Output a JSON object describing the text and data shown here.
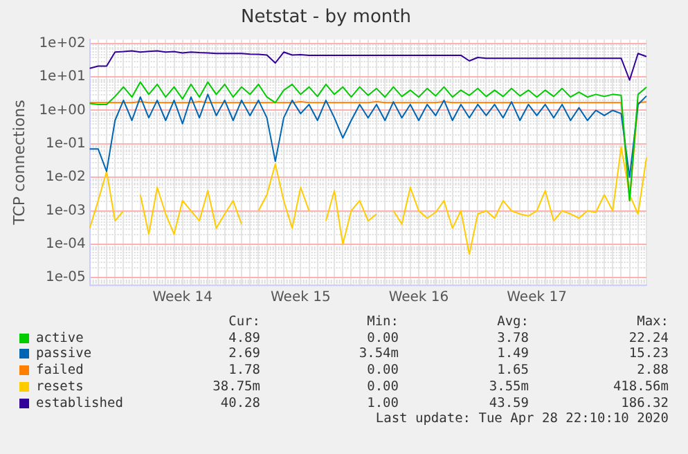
{
  "chart_data": {
    "type": "line",
    "title": "Netstat - by month",
    "ylabel": "TCP connections",
    "log": "y",
    "grid": true,
    "legend": "bottom",
    "marker": "none",
    "line_style": "solid",
    "ylim": [
      6e-06,
      130
    ],
    "yticks": [
      {
        "value": 1e-05,
        "label": "1e-05"
      },
      {
        "value": 0.0001,
        "label": "1e-04"
      },
      {
        "value": 0.001,
        "label": "1e-03"
      },
      {
        "value": 0.01,
        "label": "1e-02"
      },
      {
        "value": 0.1,
        "label": "1e-01"
      },
      {
        "value": 1,
        "label": "1e+00"
      },
      {
        "value": 10,
        "label": "1e+01"
      },
      {
        "value": 100,
        "label": "1e+02"
      }
    ],
    "categories": [
      null,
      null,
      null,
      null,
      null,
      null,
      null,
      null,
      null,
      null,
      null,
      "Week 14",
      null,
      null,
      null,
      null,
      null,
      null,
      null,
      null,
      null,
      null,
      null,
      null,
      null,
      "Week 15",
      null,
      null,
      null,
      null,
      null,
      null,
      null,
      null,
      null,
      null,
      null,
      null,
      null,
      "Week 16",
      null,
      null,
      null,
      null,
      null,
      null,
      null,
      null,
      null,
      null,
      null,
      null,
      null,
      "Week 17",
      null,
      null,
      null,
      null,
      null,
      null,
      null,
      null,
      null,
      null,
      null,
      null,
      null
    ],
    "series": [
      {
        "name": "active",
        "color": "#00cc00",
        "values": [
          1.6,
          1.5,
          1.5,
          2.6,
          5,
          2.5,
          7,
          3,
          6,
          2.5,
          5,
          2.2,
          6,
          2.5,
          7,
          3,
          6,
          2.5,
          5,
          3,
          6,
          2.5,
          1.7,
          4,
          6,
          3,
          5,
          2.6,
          6,
          3,
          5,
          2.5,
          5,
          2.8,
          4.5,
          2.5,
          5,
          2.6,
          4,
          2.5,
          4.5,
          2.7,
          5,
          2.5,
          4,
          2.8,
          4.5,
          2.6,
          4,
          2.6,
          4.5,
          2.7,
          4,
          2.5,
          4,
          2.6,
          4.5,
          2.5,
          3.5,
          2.5,
          3,
          2.6,
          3,
          2.8,
          0.002,
          3,
          4.89
        ]
      },
      {
        "name": "passive",
        "color": "#0066b3",
        "values": [
          0.07,
          0.07,
          0.015,
          0.5,
          2,
          0.5,
          2.5,
          0.6,
          2,
          0.5,
          2,
          0.4,
          2.5,
          0.6,
          3,
          0.7,
          2,
          0.5,
          2,
          0.7,
          2,
          0.6,
          0.03,
          0.6,
          2,
          0.8,
          1.5,
          0.5,
          2,
          0.6,
          0.15,
          0.5,
          1.5,
          0.6,
          1.5,
          0.5,
          1.8,
          0.6,
          1.5,
          0.5,
          1.5,
          0.7,
          2,
          0.5,
          1.5,
          0.6,
          1.5,
          0.7,
          1.5,
          0.6,
          1.8,
          0.5,
          1.5,
          0.7,
          1.5,
          0.6,
          1.5,
          0.5,
          1.2,
          0.5,
          1,
          0.7,
          1,
          0.8,
          0.01,
          1.5,
          2.69
        ]
      },
      {
        "name": "failed",
        "color": "#ff8000",
        "values": [
          1.7,
          1.7,
          1.7,
          1.7,
          1.7,
          1.7,
          1.8,
          1.7,
          1.7,
          1.7,
          1.7,
          1.7,
          1.7,
          1.8,
          1.7,
          1.7,
          1.7,
          1.7,
          1.7,
          1.7,
          1.7,
          1.7,
          1.7,
          1.7,
          1.7,
          1.8,
          1.7,
          1.7,
          1.7,
          1.7,
          1.7,
          1.7,
          1.7,
          1.7,
          1.8,
          1.7,
          1.7,
          1.7,
          1.7,
          1.7,
          1.7,
          1.7,
          1.8,
          1.7,
          1.7,
          1.7,
          1.7,
          1.7,
          1.7,
          1.7,
          1.7,
          1.7,
          1.7,
          1.7,
          1.7,
          1.7,
          1.7,
          1.7,
          1.7,
          1.7,
          1.7,
          1.7,
          1.7,
          1.7,
          0.002,
          1.7,
          1.78
        ]
      },
      {
        "name": "resets",
        "color": "#ffcc00",
        "values": [
          0.0003,
          0.002,
          0.015,
          0.0005,
          0.001,
          null,
          0.003,
          0.0002,
          0.005,
          0.0008,
          0.0002,
          0.002,
          0.001,
          0.0005,
          0.004,
          0.0003,
          0.0008,
          0.002,
          0.0004,
          null,
          0.001,
          0.003,
          0.025,
          0.002,
          0.0003,
          0.005,
          0.001,
          null,
          0.0005,
          0.004,
          0.0001,
          0.001,
          0.002,
          0.0005,
          0.0008,
          null,
          0.001,
          0.0004,
          0.005,
          0.001,
          0.0006,
          0.0009,
          0.002,
          0.0003,
          0.001,
          5e-05,
          0.0008,
          0.001,
          0.0006,
          0.002,
          0.001,
          0.0008,
          0.0007,
          0.001,
          0.004,
          0.0005,
          0.001,
          0.0008,
          0.0006,
          0.001,
          0.0009,
          0.003,
          0.001,
          0.08,
          0.003,
          0.0008,
          0.03875
        ]
      },
      {
        "name": "established",
        "color": "#330099",
        "values": [
          18,
          21,
          21,
          55,
          57,
          60,
          55,
          58,
          60,
          55,
          57,
          52,
          55,
          53,
          52,
          50,
          50,
          50,
          50,
          48,
          47,
          45,
          26,
          55,
          45,
          46,
          44,
          44,
          44,
          44,
          44,
          44,
          44,
          44,
          44,
          44,
          44,
          44,
          44,
          44,
          44,
          44,
          44,
          44,
          44,
          30,
          38,
          36,
          36,
          36,
          36,
          36,
          36,
          36,
          36,
          36,
          36,
          36,
          36,
          36,
          36,
          36,
          36,
          36,
          8,
          50,
          40.28
        ]
      }
    ],
    "annotations": [
      "Cur:",
      "Min:",
      "Avg:",
      "Max:",
      "4.89",
      "0.00",
      "3.78",
      "22.24",
      "2.69",
      "3.54m",
      "1.49",
      "15.23",
      "1.78",
      "0.00",
      "1.65",
      "2.88",
      "38.75m",
      "0.00",
      "3.55m",
      "418.56m",
      "40.28",
      "1.00",
      "43.59",
      "186.32",
      "Last update: Tue Apr 28 22:10:10 2020"
    ]
  }
}
